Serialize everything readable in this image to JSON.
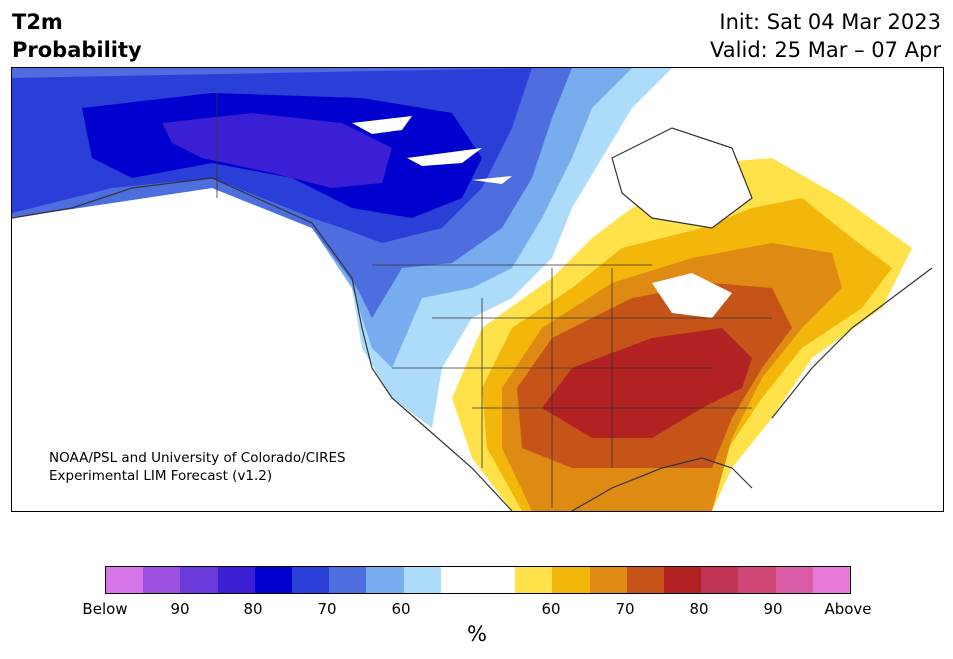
{
  "header": {
    "title_line1": "T2m",
    "title_line2": "Probability",
    "init": "Init: Sat 04 Mar 2023",
    "valid": "Valid: 25 Mar – 07 Apr"
  },
  "map": {
    "credit_line1": "NOAA/PSL and University of Colorado/CIRES",
    "credit_line2": "Experimental LIM Forecast (v1.2)"
  },
  "colorbar": {
    "colors": [
      "#d774e8",
      "#9b50e0",
      "#6a3bd8",
      "#3a1fd4",
      "#0000cf",
      "#2a3ed8",
      "#4e6ee0",
      "#77acee",
      "#acdcfa",
      "#ffffff",
      "#ffffff",
      "#ffe14a",
      "#f2b70a",
      "#df8a12",
      "#c65418",
      "#b22222",
      "#c23456",
      "#cf4878",
      "#da5ca6",
      "#e77ad9"
    ],
    "labels": [
      "Below",
      "90",
      "80",
      "70",
      "60",
      "60",
      "70",
      "80",
      "90",
      "Above"
    ],
    "unit": "%"
  }
}
